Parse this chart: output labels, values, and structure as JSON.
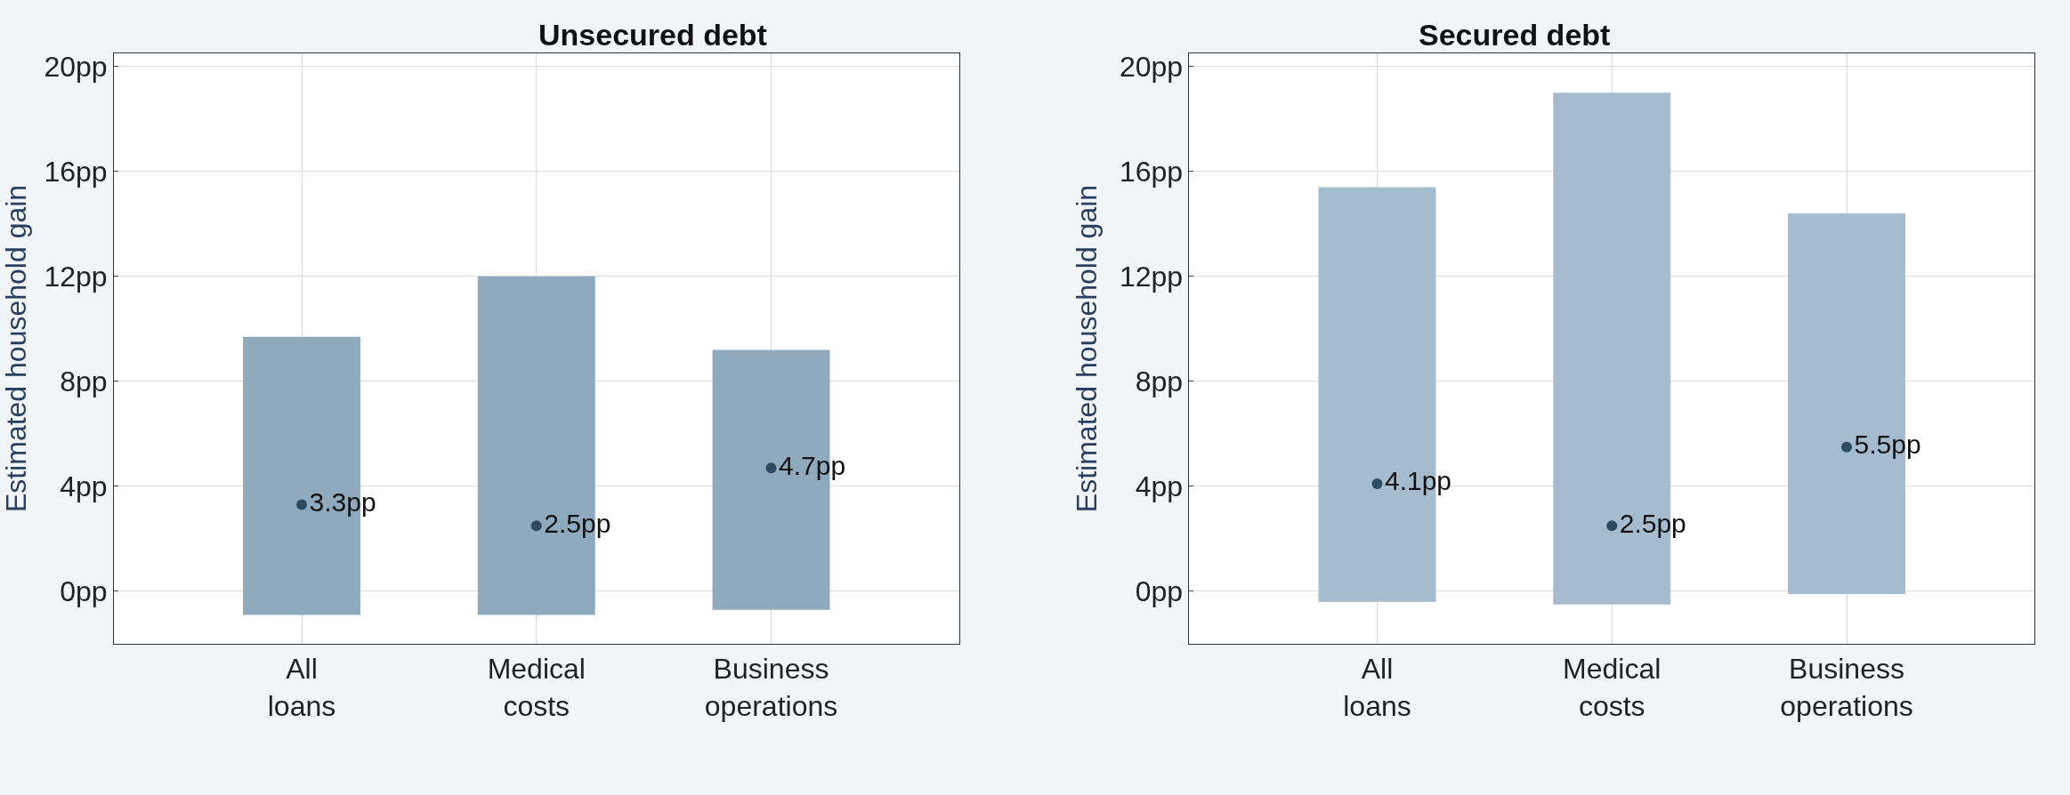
{
  "chart_data": [
    {
      "type": "bar",
      "title": "Unsecured debt",
      "ylabel": "Estimated household gain",
      "categories": [
        "All loans",
        "Medical costs",
        "Business operations"
      ],
      "ylim": [
        -2,
        20.5
      ],
      "yticks": [
        {
          "value": 0,
          "label": "0pp"
        },
        {
          "value": 4,
          "label": "4pp"
        },
        {
          "value": 8,
          "label": "8pp"
        },
        {
          "value": 12,
          "label": "12pp"
        },
        {
          "value": 16,
          "label": "16pp"
        },
        {
          "value": 20,
          "label": "20pp"
        }
      ],
      "grid": true,
      "series": [
        {
          "color": "#8fa9bd",
          "base": [
            -0.9,
            -0.9,
            -0.7
          ],
          "values": [
            10.6,
            12.9,
            9.9
          ]
        },
        {
          "type": "scatter",
          "color": "#2e4a5e",
          "values": [
            3.3,
            2.5,
            4.7
          ],
          "value_labels": [
            "3.3pp",
            "2.5pp",
            "4.7pp"
          ]
        }
      ]
    },
    {
      "type": "bar",
      "title": "Secured debt",
      "ylabel": "Estimated household gain",
      "categories": [
        "All loans",
        "Medical costs",
        "Business operations"
      ],
      "ylim": [
        -2,
        20.5
      ],
      "yticks": [
        {
          "value": 0,
          "label": "0pp"
        },
        {
          "value": 4,
          "label": "4pp"
        },
        {
          "value": 8,
          "label": "8pp"
        },
        {
          "value": 12,
          "label": "12pp"
        },
        {
          "value": 16,
          "label": "16pp"
        },
        {
          "value": 20,
          "label": "20pp"
        }
      ],
      "grid": true,
      "series": [
        {
          "color": "#a5bccf",
          "base": [
            -0.4,
            -0.5,
            -0.1
          ],
          "values": [
            15.8,
            19.5,
            14.5
          ]
        },
        {
          "type": "scatter",
          "color": "#2e4a5e",
          "values": [
            4.1,
            2.5,
            5.5
          ],
          "value_labels": [
            "4.1pp",
            "2.5pp",
            "5.5pp"
          ]
        }
      ]
    }
  ]
}
